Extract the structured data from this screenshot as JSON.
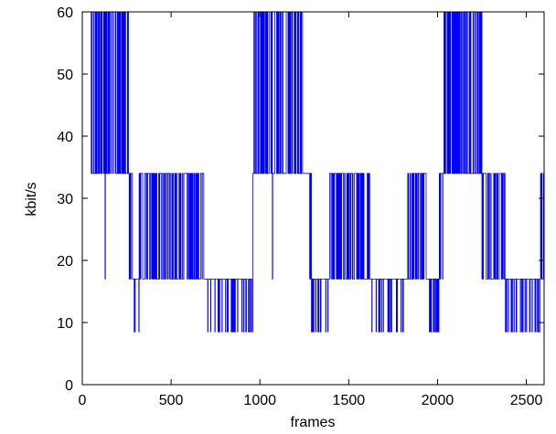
{
  "chart_data": {
    "type": "line",
    "xlabel": "frames",
    "ylabel": "kbit/s",
    "xlim": [
      0,
      2600
    ],
    "ylim": [
      0,
      60
    ],
    "xticks": [
      0,
      500,
      1000,
      1500,
      2000,
      2500
    ],
    "yticks": [
      0,
      10,
      20,
      30,
      40,
      50,
      60
    ],
    "grid": false,
    "legend": "none",
    "series_color": "#0000ff",
    "bitrate_levels": [
      8.5,
      17,
      34,
      60
    ],
    "segments": [
      {
        "x": [
          0,
          50
        ],
        "level": 60
      },
      {
        "x": [
          50,
          260
        ],
        "pattern": [
          34,
          60
        ]
      },
      {
        "x": [
          128,
          129
        ],
        "level": 17
      },
      {
        "x": [
          260,
          960
        ],
        "pattern": [
          17,
          34
        ]
      },
      {
        "x": [
          290,
          320
        ],
        "pattern": [
          8.5,
          17
        ]
      },
      {
        "x": [
          690,
          960
        ],
        "pattern": [
          8.5,
          17
        ]
      },
      {
        "x": [
          960,
          1240
        ],
        "pattern": [
          34,
          60
        ]
      },
      {
        "x": [
          1070,
          1071
        ],
        "level": 17
      },
      {
        "x": [
          1240,
          1280
        ],
        "level": 34
      },
      {
        "x": [
          1280,
          2030
        ],
        "pattern": [
          17,
          34
        ]
      },
      {
        "x": [
          1290,
          1390
        ],
        "pattern": [
          8.5,
          17
        ]
      },
      {
        "x": [
          1620,
          1830
        ],
        "pattern": [
          8.5,
          17
        ]
      },
      {
        "x": [
          1940,
          2010
        ],
        "pattern": [
          8.5,
          17
        ]
      },
      {
        "x": [
          2030,
          2250
        ],
        "pattern": [
          34,
          60
        ]
      },
      {
        "x": [
          2250,
          2600
        ],
        "pattern": [
          17,
          34
        ]
      },
      {
        "x": [
          2380,
          2580
        ],
        "pattern": [
          8.5,
          17
        ]
      }
    ]
  }
}
